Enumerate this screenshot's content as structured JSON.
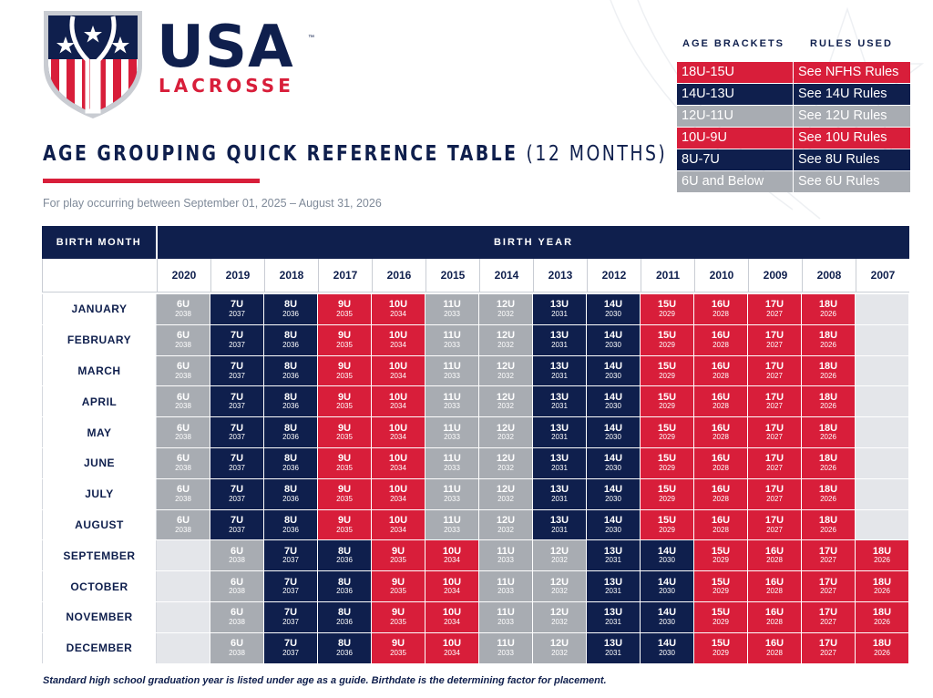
{
  "logo": {
    "brand_name": "USA",
    "brand_tm": "™",
    "brand_sub": "LACROSSE"
  },
  "title": {
    "main": "AGE GROUPING QUICK REFERENCE TABLE",
    "sub": "(12 MONTHS)"
  },
  "subtitle": "For play occurring between September 01, 2025 – August 31, 2026",
  "legend": {
    "head_brackets": "AGE BRACKETS",
    "head_rules": "RULES USED",
    "rows": [
      {
        "bracket": "18U-15U",
        "rules": "See NFHS Rules",
        "color": "#d81e3a"
      },
      {
        "bracket": "14U-13U",
        "rules": "See 14U Rules",
        "color": "#0f1f4d"
      },
      {
        "bracket": "12U-11U",
        "rules": "See 12U Rules",
        "color": "#a8acb2"
      },
      {
        "bracket": "10U-9U",
        "rules": "See 10U Rules",
        "color": "#d81e3a"
      },
      {
        "bracket": "8U-7U",
        "rules": "See 8U Rules",
        "color": "#0f1f4d"
      },
      {
        "bracket": "6U and Below",
        "rules": "See 6U Rules",
        "color": "#a8acb2"
      }
    ]
  },
  "table": {
    "birth_month_label": "BIRTH MONTH",
    "birth_year_label": "BIRTH YEAR",
    "years": [
      "2020",
      "2019",
      "2018",
      "2017",
      "2016",
      "2015",
      "2014",
      "2013",
      "2012",
      "2011",
      "2010",
      "2009",
      "2008",
      "2007"
    ],
    "first_half_months": [
      "JANUARY",
      "FEBRUARY",
      "MARCH",
      "APRIL",
      "MAY",
      "JUNE",
      "JULY",
      "AUGUST"
    ],
    "second_half_months": [
      "SEPTEMBER",
      "OCTOBER",
      "NOVEMBER",
      "DECEMBER"
    ],
    "first_half_cells": [
      {
        "age": "6U",
        "grad": "2038"
      },
      {
        "age": "7U",
        "grad": "2037"
      },
      {
        "age": "8U",
        "grad": "2036"
      },
      {
        "age": "9U",
        "grad": "2035"
      },
      {
        "age": "10U",
        "grad": "2034"
      },
      {
        "age": "11U",
        "grad": "2033"
      },
      {
        "age": "12U",
        "grad": "2032"
      },
      {
        "age": "13U",
        "grad": "2031"
      },
      {
        "age": "14U",
        "grad": "2030"
      },
      {
        "age": "15U",
        "grad": "2029"
      },
      {
        "age": "16U",
        "grad": "2028"
      },
      {
        "age": "17U",
        "grad": "2027"
      },
      {
        "age": "18U",
        "grad": "2026"
      },
      null
    ],
    "second_half_cells": [
      null,
      {
        "age": "6U",
        "grad": "2038"
      },
      {
        "age": "7U",
        "grad": "2037"
      },
      {
        "age": "8U",
        "grad": "2036"
      },
      {
        "age": "9U",
        "grad": "2035"
      },
      {
        "age": "10U",
        "grad": "2034"
      },
      {
        "age": "11U",
        "grad": "2033"
      },
      {
        "age": "12U",
        "grad": "2032"
      },
      {
        "age": "13U",
        "grad": "2031"
      },
      {
        "age": "14U",
        "grad": "2030"
      },
      {
        "age": "15U",
        "grad": "2029"
      },
      {
        "age": "16U",
        "grad": "2028"
      },
      {
        "age": "17U",
        "grad": "2027"
      },
      {
        "age": "18U",
        "grad": "2026"
      }
    ]
  },
  "colors": {
    "red": "#d81e3a",
    "navy": "#0f1f4d",
    "gray": "#a8acb2",
    "empty": "#e4e6ea",
    "age_map": {
      "6U": "gray",
      "7U": "navy",
      "8U": "navy",
      "9U": "red",
      "10U": "red",
      "11U": "gray",
      "12U": "gray",
      "13U": "navy",
      "14U": "navy",
      "15U": "red",
      "16U": "red",
      "17U": "red",
      "18U": "red"
    }
  },
  "footnote": "Standard high school graduation year is listed under age as a guide. Birthdate is the determining factor for placement."
}
